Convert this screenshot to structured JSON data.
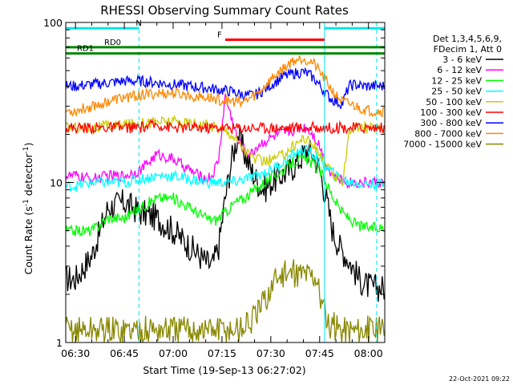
{
  "chart_data": {
    "type": "line",
    "title": "RHESSI Observing Summary Count Rates",
    "xlabel": "Start Time (19-Sep-13 06:27:02)",
    "ylabel_main": "Count Rate (s",
    "ylabel_sup1": "-1",
    "ylabel_mid": " detector",
    "ylabel_sup2": "-1",
    "ylabel_end": ")",
    "y_scale": "log",
    "ylim": [
      1,
      100
    ],
    "xlim_minutes": [
      -3.0,
      95.0
    ],
    "x_ticks": [
      {
        "label": "06:30",
        "min": 0
      },
      {
        "label": "06:45",
        "min": 15
      },
      {
        "label": "07:00",
        "min": 30
      },
      {
        "label": "07:15",
        "min": 45
      },
      {
        "label": "07:30",
        "min": 60
      },
      {
        "label": "07:45",
        "min": 75
      },
      {
        "label": "08:00",
        "min": 90
      }
    ],
    "y_ticks": [
      {
        "label": "1",
        "value": 1
      },
      {
        "label": "10",
        "value": 10
      },
      {
        "label": "100",
        "value": 100
      }
    ],
    "legend_header": [
      "Det 1,3,4,5,6,9,",
      "FDecim 1, Att 0"
    ],
    "legend_position": "right",
    "series": [
      {
        "name": "3 - 6 keV",
        "color": "#000000",
        "points": [
          [
            0,
            2.5
          ],
          [
            5,
            3.5
          ],
          [
            10,
            7
          ],
          [
            15,
            7.5
          ],
          [
            20,
            6.5
          ],
          [
            25,
            6
          ],
          [
            30,
            5
          ],
          [
            35,
            4
          ],
          [
            40,
            3.2
          ],
          [
            42,
            3
          ],
          [
            44,
            4
          ],
          [
            46,
            8
          ],
          [
            48,
            14
          ],
          [
            50,
            20
          ],
          [
            52,
            15
          ],
          [
            54,
            12
          ],
          [
            56,
            10
          ],
          [
            58,
            9
          ],
          [
            60,
            10
          ],
          [
            63,
            11
          ],
          [
            66,
            12
          ],
          [
            69,
            14
          ],
          [
            71,
            16
          ],
          [
            73,
            15
          ],
          [
            75,
            12
          ],
          [
            77,
            8
          ],
          [
            79,
            5
          ],
          [
            81,
            4
          ],
          [
            83,
            3.5
          ],
          [
            85,
            3
          ],
          [
            87,
            2.5
          ],
          [
            89,
            2.3
          ],
          [
            91,
            2.2
          ]
        ]
      },
      {
        "name": "6 - 12 keV",
        "color": "#ff00ff",
        "points": [
          [
            0,
            11
          ],
          [
            5,
            10.5
          ],
          [
            10,
            11
          ],
          [
            15,
            11
          ],
          [
            20,
            12
          ],
          [
            25,
            15
          ],
          [
            30,
            14
          ],
          [
            35,
            12
          ],
          [
            38,
            11
          ],
          [
            40,
            10.5
          ],
          [
            42,
            11
          ],
          [
            44,
            14
          ],
          [
            46,
            35
          ],
          [
            48,
            25
          ],
          [
            50,
            18
          ],
          [
            52,
            16
          ],
          [
            54,
            15
          ],
          [
            56,
            17
          ],
          [
            58,
            18
          ],
          [
            60,
            19
          ],
          [
            63,
            20
          ],
          [
            66,
            21
          ],
          [
            69,
            22
          ],
          [
            71,
            22
          ],
          [
            73,
            20
          ],
          [
            75,
            17
          ],
          [
            77,
            13
          ],
          [
            79,
            11
          ],
          [
            81,
            10.5
          ],
          [
            83,
            10
          ],
          [
            85,
            10
          ],
          [
            87,
            10
          ],
          [
            89,
            10
          ],
          [
            91,
            10
          ]
        ]
      },
      {
        "name": "12 - 25 keV",
        "color": "#00ff00",
        "points": [
          [
            0,
            5
          ],
          [
            5,
            5
          ],
          [
            10,
            6
          ],
          [
            15,
            6
          ],
          [
            20,
            7
          ],
          [
            25,
            8
          ],
          [
            30,
            8
          ],
          [
            35,
            7
          ],
          [
            40,
            6
          ],
          [
            43,
            5.8
          ],
          [
            46,
            6.5
          ],
          [
            49,
            7.5
          ],
          [
            52,
            8
          ],
          [
            55,
            9
          ],
          [
            58,
            10
          ],
          [
            61,
            11
          ],
          [
            64,
            12
          ],
          [
            67,
            13.5
          ],
          [
            70,
            14
          ],
          [
            72,
            13.5
          ],
          [
            74,
            12.5
          ],
          [
            76,
            11
          ],
          [
            78,
            9
          ],
          [
            80,
            7.5
          ],
          [
            82,
            6.5
          ],
          [
            84,
            6
          ],
          [
            86,
            5.5
          ],
          [
            88,
            5.3
          ],
          [
            91,
            5.2
          ]
        ]
      },
      {
        "name": "25 - 50 keV",
        "color": "#00ffff",
        "points": [
          [
            0,
            9.5
          ],
          [
            5,
            10
          ],
          [
            10,
            10
          ],
          [
            15,
            10
          ],
          [
            20,
            10.5
          ],
          [
            25,
            11
          ],
          [
            30,
            11
          ],
          [
            35,
            10.5
          ],
          [
            40,
            10
          ],
          [
            44,
            10
          ],
          [
            48,
            10
          ],
          [
            52,
            10.5
          ],
          [
            56,
            11
          ],
          [
            60,
            12
          ],
          [
            64,
            13.5
          ],
          [
            67,
            15
          ],
          [
            70,
            16
          ],
          [
            72,
            15.5
          ],
          [
            74,
            14.5
          ],
          [
            76,
            13
          ],
          [
            78,
            12
          ],
          [
            80,
            11
          ],
          [
            82,
            10.5
          ],
          [
            84,
            10
          ],
          [
            86,
            10
          ],
          [
            88,
            9.8
          ],
          [
            91,
            9.8
          ]
        ]
      },
      {
        "name": "50 - 100 keV",
        "color": "#cccc00",
        "points": [
          [
            0,
            22
          ],
          [
            5,
            22
          ],
          [
            10,
            22.5
          ],
          [
            15,
            23
          ],
          [
            20,
            23.5
          ],
          [
            25,
            24
          ],
          [
            30,
            24
          ],
          [
            35,
            23.5
          ],
          [
            40,
            23
          ],
          [
            44,
            22
          ],
          [
            48,
            20
          ],
          [
            52,
            16
          ],
          [
            55,
            14
          ],
          [
            58,
            13.5
          ],
          [
            61,
            14
          ],
          [
            64,
            15
          ],
          [
            67,
            17
          ],
          [
            70,
            19
          ],
          [
            72,
            18
          ],
          [
            74,
            16
          ],
          [
            76,
            14
          ],
          [
            78,
            12
          ],
          [
            80,
            10.5
          ],
          [
            82,
            10
          ],
          [
            84,
            21
          ],
          [
            86,
            22
          ],
          [
            88,
            22
          ],
          [
            91,
            22
          ]
        ]
      },
      {
        "name": "100 - 300 keV",
        "color": "#ff0000",
        "points": [
          [
            0,
            22
          ],
          [
            5,
            22
          ],
          [
            10,
            22
          ],
          [
            15,
            22
          ],
          [
            20,
            22
          ],
          [
            25,
            23
          ],
          [
            30,
            22
          ],
          [
            35,
            22
          ],
          [
            40,
            22
          ],
          [
            44,
            22
          ],
          [
            48,
            22
          ],
          [
            52,
            22
          ],
          [
            56,
            22
          ],
          [
            60,
            22
          ],
          [
            64,
            22
          ],
          [
            68,
            22
          ],
          [
            72,
            22
          ],
          [
            76,
            22
          ],
          [
            80,
            22
          ],
          [
            84,
            22
          ],
          [
            88,
            22
          ],
          [
            91,
            22
          ]
        ]
      },
      {
        "name": "300 - 800 keV",
        "color": "#0000ff",
        "points": [
          [
            0,
            40
          ],
          [
            5,
            41
          ],
          [
            10,
            42
          ],
          [
            15,
            43
          ],
          [
            20,
            43
          ],
          [
            25,
            42
          ],
          [
            30,
            41
          ],
          [
            35,
            40
          ],
          [
            40,
            39
          ],
          [
            44,
            38
          ],
          [
            48,
            37
          ],
          [
            52,
            35
          ],
          [
            55,
            35
          ],
          [
            58,
            38
          ],
          [
            61,
            42
          ],
          [
            64,
            46
          ],
          [
            67,
            48
          ],
          [
            70,
            49
          ],
          [
            72,
            47
          ],
          [
            74,
            43
          ],
          [
            76,
            38
          ],
          [
            78,
            34
          ],
          [
            80,
            32
          ],
          [
            82,
            31
          ],
          [
            84,
            40
          ],
          [
            86,
            41
          ],
          [
            88,
            40
          ],
          [
            91,
            40
          ]
        ]
      },
      {
        "name": "800 - 7000 keV",
        "color": "#ff8800",
        "points": [
          [
            0,
            28
          ],
          [
            5,
            30
          ],
          [
            10,
            32
          ],
          [
            15,
            34
          ],
          [
            20,
            35
          ],
          [
            25,
            36
          ],
          [
            30,
            36
          ],
          [
            35,
            35
          ],
          [
            40,
            34
          ],
          [
            44,
            33
          ],
          [
            48,
            32
          ],
          [
            52,
            32
          ],
          [
            56,
            36
          ],
          [
            60,
            44
          ],
          [
            64,
            52
          ],
          [
            67,
            58
          ],
          [
            70,
            60
          ],
          [
            72,
            58
          ],
          [
            74,
            53
          ],
          [
            76,
            46
          ],
          [
            78,
            40
          ],
          [
            80,
            35
          ],
          [
            82,
            32
          ],
          [
            84,
            31
          ],
          [
            86,
            30
          ],
          [
            88,
            29
          ],
          [
            91,
            28
          ]
        ]
      },
      {
        "name": "7000 - 15000 keV",
        "color": "#888800",
        "points": [
          [
            0,
            1.2
          ],
          [
            10,
            1.2
          ],
          [
            20,
            1.2
          ],
          [
            30,
            1.2
          ],
          [
            40,
            1.2
          ],
          [
            50,
            1.2
          ],
          [
            55,
            1.4
          ],
          [
            58,
            1.8
          ],
          [
            62,
            2.6
          ],
          [
            66,
            2.7
          ],
          [
            70,
            2.7
          ],
          [
            74,
            2.6
          ],
          [
            76,
            1.6
          ],
          [
            78,
            1.3
          ],
          [
            82,
            1.2
          ],
          [
            91,
            1.2
          ]
        ]
      }
    ],
    "top_spans": [
      {
        "label": "N",
        "color": "#00e5ee",
        "segments": [
          [
            -3,
            19.5
          ],
          [
            76.5,
            95
          ]
        ],
        "y": 92
      },
      {
        "label": "F",
        "color": "#ff0000",
        "segments": [
          [
            46,
            76.5
          ]
        ],
        "y": 78
      },
      {
        "label": "RD0",
        "color": "#008800",
        "segments": [
          [
            -3,
            95
          ]
        ],
        "y": 70
      },
      {
        "label": "RD1",
        "color": "#008800",
        "segments": [
          [
            -3,
            95
          ]
        ],
        "y": 64
      }
    ],
    "vertical_lines": [
      {
        "min": 19.5,
        "color": "#00e5ee",
        "style": "dashed"
      },
      {
        "min": 76.5,
        "color": "#00e5ee",
        "style": "solid"
      },
      {
        "min": 92.5,
        "color": "#00e5ee",
        "style": "dashed"
      }
    ],
    "timestamp": "22-Oct-2021 09:22"
  }
}
